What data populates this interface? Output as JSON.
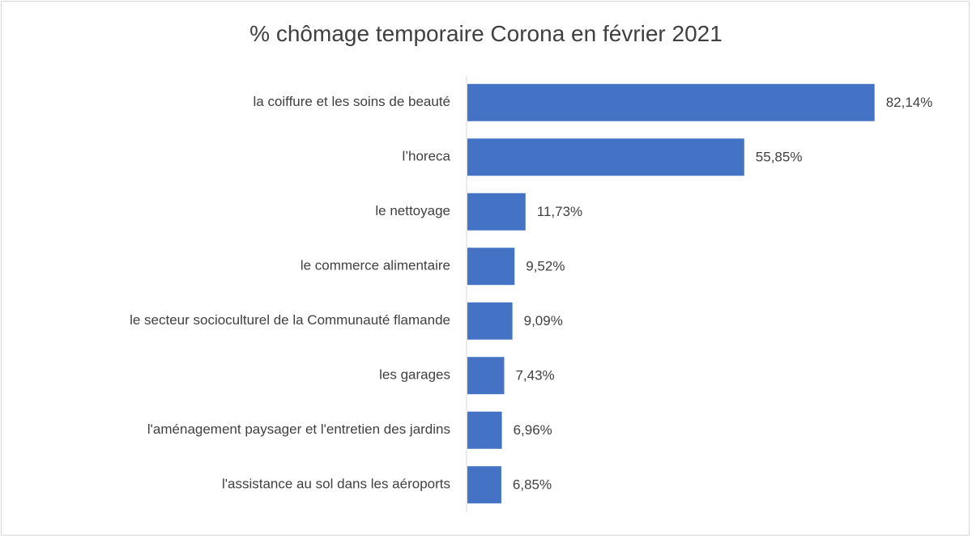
{
  "chart_data": {
    "type": "bar",
    "orientation": "horizontal",
    "title": "% chômage temporaire Corona en février 2021",
    "categories": [
      "la coiffure et les soins de beauté",
      "l’horeca",
      "le nettoyage",
      "le commerce alimentaire",
      "le secteur socioculturel de la Communauté flamande",
      "les garages",
      "l'aménagement paysager et l'entretien des jardins",
      "l'assistance au sol dans les aéroports"
    ],
    "values": [
      82.14,
      55.85,
      11.73,
      9.52,
      9.09,
      7.43,
      6.96,
      6.85
    ],
    "value_labels": [
      "82,14%",
      "55,85%",
      "11,73%",
      "9,52%",
      "9,09%",
      "7,43%",
      "6,96%",
      "6,85%"
    ],
    "xlabel": "",
    "ylabel": "",
    "xlim": [
      0,
      100
    ],
    "grid": false,
    "legend": "none",
    "bar_color": "#4472C4",
    "axis_color": "#d9d9d9",
    "text_color": "#404040"
  }
}
